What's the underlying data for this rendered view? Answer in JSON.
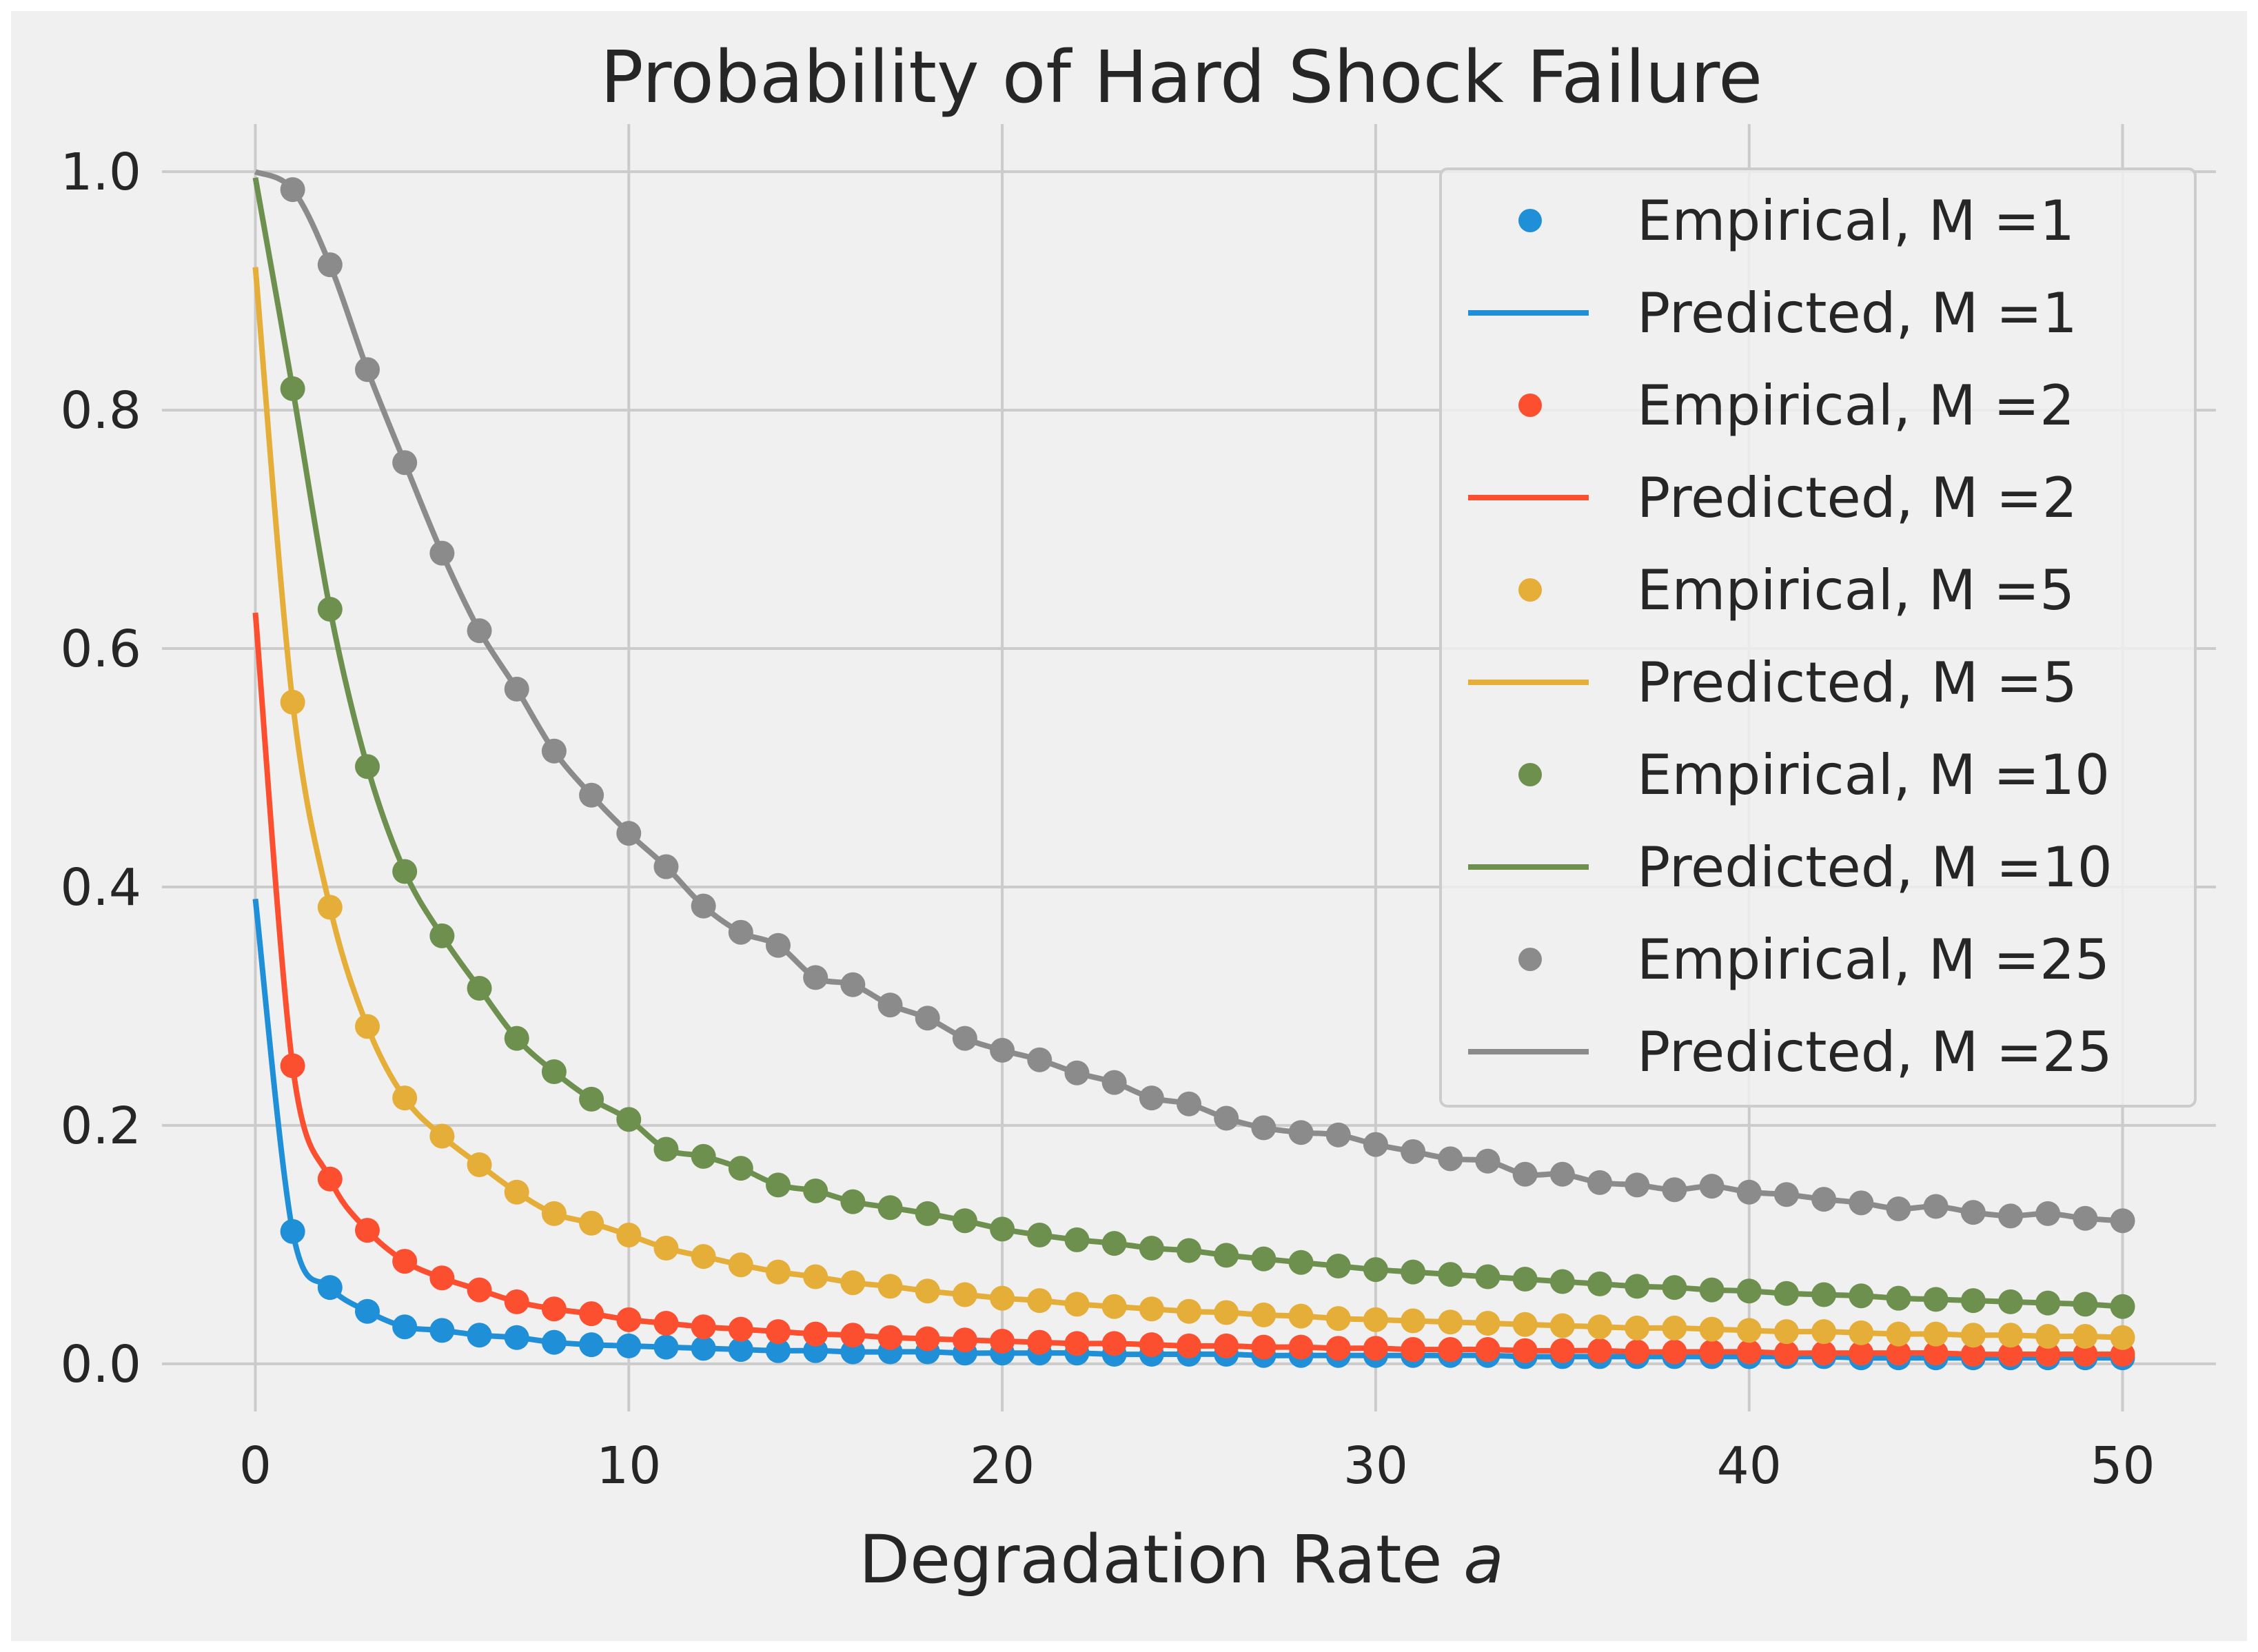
{
  "chart_data": {
    "type": "scatter+line",
    "title": "Probability of Hard Shock Failure",
    "xlabel": "Degradation Rate ",
    "xlabel_var": "a",
    "ylabel": "",
    "xlim": [
      -2.5,
      52.5
    ],
    "ylim": [
      -0.04,
      1.04
    ],
    "xticks": [
      0,
      10,
      20,
      30,
      40,
      50
    ],
    "xtick_labels": [
      "0",
      "10",
      "20",
      "30",
      "40",
      "50"
    ],
    "yticks": [
      0.0,
      0.2,
      0.4,
      0.6,
      0.8,
      1.0
    ],
    "ytick_labels": [
      "0.0",
      "0.2",
      "0.4",
      "0.6",
      "0.8",
      "1.0"
    ],
    "grid": true,
    "legend_position": "upper-right",
    "x": [
      0,
      1,
      2,
      3,
      4,
      5,
      6,
      7,
      8,
      9,
      10,
      11,
      12,
      13,
      14,
      15,
      16,
      17,
      18,
      19,
      20,
      21,
      22,
      23,
      24,
      25,
      26,
      27,
      28,
      29,
      30,
      31,
      32,
      33,
      34,
      35,
      36,
      37,
      38,
      39,
      40,
      41,
      42,
      43,
      44,
      45,
      46,
      47,
      48,
      49,
      50
    ],
    "series": [
      {
        "M": 1,
        "color": "#1f8fd8",
        "empirical_label": "Empirical, M =1",
        "predicted_label": "Predicted, M =1",
        "predicted_at_0": 0.39,
        "empirical": [
          null,
          0.111,
          0.064,
          0.044,
          0.031,
          0.028,
          0.024,
          0.022,
          0.018,
          0.016,
          0.015,
          0.014,
          0.013,
          0.012,
          0.011,
          0.011,
          0.01,
          0.01,
          0.01,
          0.009,
          0.009,
          0.009,
          0.009,
          0.008,
          0.008,
          0.008,
          0.008,
          0.007,
          0.007,
          0.007,
          0.007,
          0.007,
          0.007,
          0.007,
          0.006,
          0.006,
          0.006,
          0.006,
          0.006,
          0.006,
          0.006,
          0.006,
          0.006,
          0.005,
          0.005,
          0.005,
          0.005,
          0.005,
          0.005,
          0.005,
          0.005
        ]
      },
      {
        "M": 2,
        "color": "#fc4f30",
        "empirical_label": "Empirical, M =2",
        "predicted_label": "Predicted, M =2",
        "predicted_at_0": 0.63,
        "empirical": [
          null,
          0.25,
          0.155,
          0.112,
          0.086,
          0.072,
          0.062,
          0.052,
          0.046,
          0.042,
          0.037,
          0.034,
          0.031,
          0.029,
          0.027,
          0.025,
          0.024,
          0.022,
          0.021,
          0.02,
          0.019,
          0.018,
          0.017,
          0.017,
          0.016,
          0.015,
          0.015,
          0.014,
          0.014,
          0.013,
          0.013,
          0.012,
          0.012,
          0.012,
          0.011,
          0.011,
          0.011,
          0.01,
          0.01,
          0.01,
          0.01,
          0.009,
          0.009,
          0.009,
          0.009,
          0.009,
          0.008,
          0.008,
          0.008,
          0.008,
          0.008
        ]
      },
      {
        "M": 5,
        "color": "#e5ae38",
        "empirical_label": "Empirical, M =5",
        "predicted_label": "Predicted, M =5",
        "predicted_at_0": 0.92,
        "empirical": [
          null,
          0.555,
          0.383,
          0.283,
          0.223,
          0.191,
          0.167,
          0.144,
          0.126,
          0.118,
          0.108,
          0.097,
          0.09,
          0.083,
          0.077,
          0.073,
          0.068,
          0.065,
          0.061,
          0.058,
          0.055,
          0.053,
          0.05,
          0.048,
          0.046,
          0.044,
          0.043,
          0.041,
          0.04,
          0.038,
          0.037,
          0.036,
          0.035,
          0.034,
          0.033,
          0.032,
          0.031,
          0.03,
          0.03,
          0.029,
          0.028,
          0.027,
          0.027,
          0.026,
          0.025,
          0.025,
          0.024,
          0.024,
          0.023,
          0.023,
          0.022
        ]
      },
      {
        "M": 10,
        "color": "#6d904f",
        "empirical_label": "Empirical, M =10",
        "predicted_label": "Predicted, M =10",
        "predicted_at_0": 0.995,
        "empirical": [
          null,
          0.818,
          0.633,
          0.501,
          0.413,
          0.359,
          0.315,
          0.273,
          0.245,
          0.222,
          0.205,
          0.18,
          0.174,
          0.164,
          0.15,
          0.145,
          0.136,
          0.131,
          0.126,
          0.12,
          0.113,
          0.108,
          0.104,
          0.101,
          0.097,
          0.095,
          0.091,
          0.088,
          0.085,
          0.082,
          0.079,
          0.077,
          0.075,
          0.073,
          0.071,
          0.069,
          0.067,
          0.065,
          0.064,
          0.062,
          0.061,
          0.059,
          0.058,
          0.057,
          0.055,
          0.054,
          0.053,
          0.052,
          0.051,
          0.05,
          0.048
        ]
      },
      {
        "M": 25,
        "color": "#8b8b8b",
        "empirical_label": "Empirical, M =25",
        "predicted_label": "Predicted, M =25",
        "predicted_at_0": 1.0,
        "empirical": [
          null,
          0.985,
          0.922,
          0.834,
          0.756,
          0.68,
          0.615,
          0.566,
          0.514,
          0.477,
          0.445,
          0.417,
          0.384,
          0.362,
          0.351,
          0.324,
          0.318,
          0.301,
          0.29,
          0.273,
          0.263,
          0.255,
          0.244,
          0.236,
          0.223,
          0.218,
          0.206,
          0.198,
          0.194,
          0.192,
          0.184,
          0.178,
          0.172,
          0.17,
          0.159,
          0.159,
          0.152,
          0.15,
          0.146,
          0.149,
          0.144,
          0.142,
          0.138,
          0.135,
          0.13,
          0.132,
          0.127,
          0.124,
          0.126,
          0.122,
          0.12
        ]
      }
    ]
  }
}
